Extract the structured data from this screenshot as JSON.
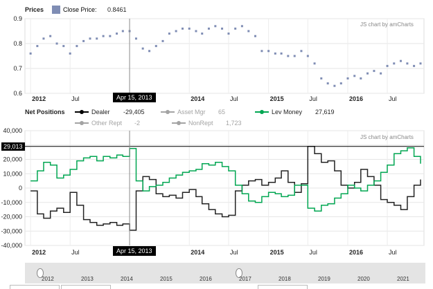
{
  "top_panel": {
    "title": "Prices",
    "legend_label": "Close Price:",
    "legend_value": "0.8461",
    "credit": "JS chart by amCharts",
    "cursor_date": "Apr 15, 2013",
    "colors": {
      "series": "#7f8db4",
      "accent_points": "#cc4444",
      "cursor": "#888888"
    }
  },
  "bottom_panel": {
    "title": "Net Positions",
    "legend": [
      {
        "label": "Dealer",
        "value": "-29,405",
        "color": "#000000",
        "hidden": false
      },
      {
        "label": "Asset Mgr",
        "value": "65",
        "color": "#aaaaaa",
        "hidden": true
      },
      {
        "label": "Lev Money",
        "value": "27,619",
        "color": "#00a651",
        "hidden": false
      },
      {
        "label": "Other Rept",
        "value": "-2",
        "color": "#aaaaaa",
        "hidden": true
      },
      {
        "label": "NonRept",
        "value": "1,723",
        "color": "#aaaaaa",
        "hidden": true
      }
    ],
    "credit": "JS chart by amCharts",
    "cursor_date": "Apr 15, 2013",
    "cursor_value": "29,013"
  },
  "scrollbar": {
    "years": [
      "2012",
      "2013",
      "2014",
      "2015",
      "2016",
      "2017",
      "2018",
      "2019",
      "2020",
      "2021"
    ]
  },
  "chart_data": [
    {
      "type": "scatter",
      "title": "Prices",
      "series": [
        {
          "name": "Close Price",
          "x": [
            "2012-01",
            "2012-02",
            "2012-03",
            "2012-04",
            "2012-05",
            "2012-06",
            "2012-07",
            "2012-08",
            "2012-09",
            "2012-10",
            "2012-11",
            "2012-12",
            "2013-01",
            "2013-02",
            "2013-03",
            "2013-04",
            "2013-05",
            "2013-06",
            "2013-07",
            "2013-08",
            "2013-09",
            "2013-10",
            "2013-11",
            "2013-12",
            "2014-01",
            "2014-02",
            "2014-03",
            "2014-04",
            "2014-05",
            "2014-06",
            "2014-07",
            "2014-08",
            "2014-09",
            "2014-10",
            "2014-11",
            "2014-12",
            "2015-01",
            "2015-02",
            "2015-03",
            "2015-04",
            "2015-05",
            "2015-06",
            "2015-07",
            "2015-08",
            "2015-09",
            "2015-10",
            "2015-11",
            "2015-12",
            "2016-01",
            "2016-02",
            "2016-03",
            "2016-04",
            "2016-05",
            "2016-06",
            "2016-07",
            "2016-08",
            "2016-09",
            "2016-10",
            "2016-11",
            "2016-12"
          ],
          "values": [
            0.76,
            0.79,
            0.82,
            0.83,
            0.8,
            0.79,
            0.76,
            0.79,
            0.81,
            0.82,
            0.82,
            0.83,
            0.83,
            0.84,
            0.85,
            0.85,
            0.82,
            0.78,
            0.77,
            0.79,
            0.81,
            0.84,
            0.85,
            0.86,
            0.86,
            0.85,
            0.84,
            0.86,
            0.87,
            0.86,
            0.84,
            0.86,
            0.87,
            0.85,
            0.83,
            0.77,
            0.77,
            0.76,
            0.76,
            0.75,
            0.75,
            0.77,
            0.75,
            0.72,
            0.66,
            0.64,
            0.63,
            0.64,
            0.66,
            0.67,
            0.66,
            0.68,
            0.69,
            0.68,
            0.71,
            0.72,
            0.73,
            0.72,
            0.71,
            0.72
          ]
        }
      ],
      "ylim": [
        0.6,
        0.9
      ],
      "y_ticks": [
        "0.6",
        "0.7",
        "0.8",
        "0.9"
      ],
      "x_ticks": [
        {
          "label": "2012",
          "date": "2012-01",
          "major": true
        },
        {
          "label": "Jul",
          "date": "2012-07",
          "major": false
        },
        {
          "label": "2014",
          "date": "2014-01",
          "major": true
        },
        {
          "label": "Jul",
          "date": "2014-07",
          "major": false
        },
        {
          "label": "2015",
          "date": "2015-01",
          "major": true
        },
        {
          "label": "Jul",
          "date": "2015-07",
          "major": false
        },
        {
          "label": "2016",
          "date": "2016-01",
          "major": true
        },
        {
          "label": "Jul",
          "date": "2016-07",
          "major": false
        }
      ],
      "grid": true
    },
    {
      "type": "line",
      "title": "Net Positions",
      "x": [
        "2012-01",
        "2012-02",
        "2012-03",
        "2012-04",
        "2012-05",
        "2012-06",
        "2012-07",
        "2012-08",
        "2012-09",
        "2012-10",
        "2012-11",
        "2012-12",
        "2013-01",
        "2013-02",
        "2013-03",
        "2013-04",
        "2013-05",
        "2013-06",
        "2013-07",
        "2013-08",
        "2013-09",
        "2013-10",
        "2013-11",
        "2013-12",
        "2014-01",
        "2014-02",
        "2014-03",
        "2014-04",
        "2014-05",
        "2014-06",
        "2014-07",
        "2014-08",
        "2014-09",
        "2014-10",
        "2014-11",
        "2014-12",
        "2015-01",
        "2015-02",
        "2015-03",
        "2015-04",
        "2015-05",
        "2015-06",
        "2015-07",
        "2015-08",
        "2015-09",
        "2015-10",
        "2015-11",
        "2015-12",
        "2016-01",
        "2016-02",
        "2016-03",
        "2016-04",
        "2016-05",
        "2016-06",
        "2016-07",
        "2016-08",
        "2016-09",
        "2016-10",
        "2016-11",
        "2016-12"
      ],
      "series": [
        {
          "name": "Dealer",
          "values": [
            -2000,
            -18000,
            -21000,
            -16000,
            -14000,
            -17000,
            -3000,
            -12000,
            -22000,
            -24000,
            -26000,
            -25000,
            -24000,
            -26000,
            -25000,
            -29405,
            -2000,
            8000,
            6000,
            -4000,
            -6000,
            -5000,
            -7000,
            -3000,
            -1000,
            -6000,
            -11000,
            -15000,
            -18000,
            -20000,
            -19000,
            -2000,
            2000,
            5000,
            6000,
            2000,
            4000,
            7000,
            12000,
            4000,
            -3000,
            3000,
            29000,
            24000,
            18000,
            19000,
            12000,
            2000,
            0,
            4000,
            13000,
            8000,
            2000,
            -8000,
            -10000,
            -12000,
            -15000,
            -6000,
            2000,
            6000
          ]
        },
        {
          "name": "Lev Money",
          "values": [
            5000,
            12000,
            18000,
            16000,
            7000,
            9000,
            13000,
            19000,
            21000,
            22000,
            19000,
            22000,
            21000,
            23000,
            22000,
            27619,
            5000,
            -2000,
            1000,
            2000,
            4000,
            7000,
            9000,
            11000,
            12000,
            13000,
            17000,
            16000,
            18000,
            15000,
            12000,
            2000,
            -4000,
            -9000,
            -10000,
            -6000,
            -3000,
            -4000,
            -6000,
            -5000,
            2000,
            2000,
            -14000,
            -16000,
            -12000,
            -11000,
            -7000,
            -4000,
            2000,
            0,
            -2000,
            2000,
            5000,
            11000,
            16000,
            24000,
            26000,
            28000,
            22000,
            17000
          ]
        }
      ],
      "ylim": [
        -40000,
        40000
      ],
      "y_ticks": [
        "-40,000",
        "-30,000",
        "-20,000",
        "-10,000",
        "0",
        "10,000",
        "20,000",
        "30,000",
        "40,000"
      ],
      "x_ticks": [
        {
          "label": "2012",
          "date": "2012-01",
          "major": true
        },
        {
          "label": "Jul",
          "date": "2012-07",
          "major": false
        },
        {
          "label": "2014",
          "date": "2014-01",
          "major": true
        },
        {
          "label": "Jul",
          "date": "2014-07",
          "major": false
        },
        {
          "label": "2015",
          "date": "2015-01",
          "major": true
        },
        {
          "label": "Jul",
          "date": "2015-07",
          "major": false
        },
        {
          "label": "2016",
          "date": "2016-01",
          "major": true
        },
        {
          "label": "Jul",
          "date": "2016-07",
          "major": false
        }
      ],
      "grid": true
    }
  ]
}
